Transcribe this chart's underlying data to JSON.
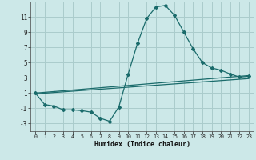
{
  "xlabel": "Humidex (Indice chaleur)",
  "background_color": "#cce8e8",
  "grid_color": "#aacccc",
  "line_color": "#1a6b6b",
  "xlim": [
    -0.5,
    23.5
  ],
  "ylim": [
    -4,
    13
  ],
  "yticks": [
    -3,
    -1,
    1,
    3,
    5,
    7,
    9,
    11
  ],
  "xticks": [
    0,
    1,
    2,
    3,
    4,
    5,
    6,
    7,
    8,
    9,
    10,
    11,
    12,
    13,
    14,
    15,
    16,
    17,
    18,
    19,
    20,
    21,
    22,
    23
  ],
  "curve_x": [
    0,
    1,
    2,
    3,
    4,
    5,
    6,
    7,
    8,
    9,
    10,
    11,
    12,
    13,
    14,
    15,
    16,
    17,
    18,
    19,
    20,
    21,
    22,
    23
  ],
  "curve_y": [
    1.0,
    -0.5,
    -0.7,
    -1.2,
    -1.2,
    -1.3,
    -1.5,
    -2.3,
    -2.7,
    -0.8,
    3.5,
    7.5,
    10.8,
    12.3,
    12.5,
    11.2,
    9.0,
    6.8,
    5.0,
    4.3,
    4.0,
    3.5,
    3.1,
    3.2
  ],
  "line2_x": [
    0,
    23
  ],
  "line2_y": [
    1.0,
    3.3
  ],
  "line3_x": [
    0,
    23
  ],
  "line3_y": [
    0.9,
    2.9
  ]
}
